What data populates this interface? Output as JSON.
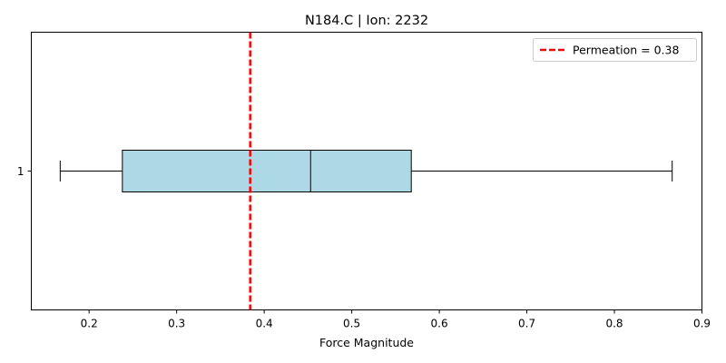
{
  "chart_data": {
    "type": "boxplot",
    "title": "N184.C | Ion: 2232",
    "xlabel": "Force Magnitude",
    "ylabel": "",
    "orientation": "horizontal",
    "xlim": [
      0.134,
      0.9
    ],
    "x_ticks": [
      "0.2",
      "0.3",
      "0.4",
      "0.5",
      "0.6",
      "0.7",
      "0.8",
      "0.9"
    ],
    "y_ticks": [
      "1"
    ],
    "box": {
      "category": "1",
      "whisker_low": 0.167,
      "q1": 0.238,
      "median": 0.453,
      "q3": 0.568,
      "whisker_high": 0.866,
      "fill_color": "#add8e6",
      "edge_color": "#000000"
    },
    "reference_line": {
      "value": 0.384,
      "color": "#ff0000",
      "style": "dashed",
      "legend_label": "Permeation = 0.38"
    },
    "legend_position": "top-right",
    "grid": false
  }
}
